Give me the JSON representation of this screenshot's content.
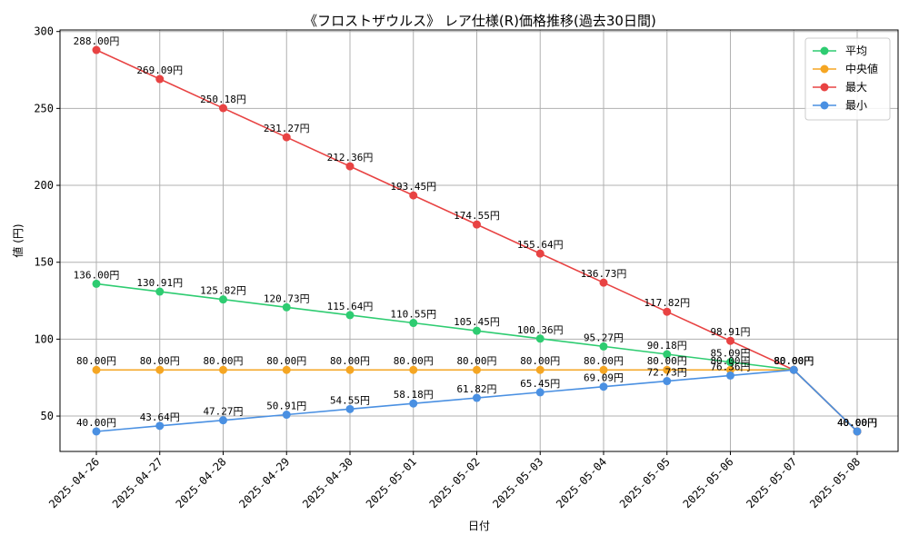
{
  "chart_data": {
    "type": "line",
    "title": "《フロストザウルス》 レア仕様(R)価格推移(過去30日間)",
    "xlabel": "日付",
    "ylabel": "値 (円)",
    "ylim": [
      27,
      301
    ],
    "yticks": [
      50,
      100,
      150,
      200,
      250,
      300
    ],
    "grid": true,
    "legend_position": "top-right",
    "categories": [
      "2025-04-26",
      "2025-04-27",
      "2025-04-28",
      "2025-04-29",
      "2025-04-30",
      "2025-05-01",
      "2025-05-02",
      "2025-05-03",
      "2025-05-04",
      "2025-05-05",
      "2025-05-06",
      "2025-05-07",
      "2025-05-08"
    ],
    "series": [
      {
        "name": "平均",
        "color": "#2ecc71",
        "values": [
          136.0,
          130.91,
          125.82,
          120.73,
          115.64,
          110.55,
          105.45,
          100.36,
          95.27,
          90.18,
          85.09,
          80.0,
          40.0
        ],
        "labels": [
          "136.00円",
          "130.91円",
          "125.82円",
          "120.73円",
          "115.64円",
          "110.55円",
          "105.45円",
          "100.36円",
          "95.27円",
          "90.18円",
          "85.09円",
          "80.00円",
          "40.00円"
        ]
      },
      {
        "name": "中央値",
        "color": "#f5a623",
        "values": [
          80.0,
          80.0,
          80.0,
          80.0,
          80.0,
          80.0,
          80.0,
          80.0,
          80.0,
          80.0,
          80.0,
          80.0,
          40.0
        ],
        "labels": [
          "80.00円",
          "80.00円",
          "80.00円",
          "80.00円",
          "80.00円",
          "80.00円",
          "80.00円",
          "80.00円",
          "80.00円",
          "80.00円",
          "80.00円",
          "80.00円",
          "40.00円"
        ]
      },
      {
        "name": "最大",
        "color": "#e84343",
        "values": [
          288.0,
          269.09,
          250.18,
          231.27,
          212.36,
          193.45,
          174.55,
          155.64,
          136.73,
          117.82,
          98.91,
          80.0,
          40.0
        ],
        "labels": [
          "288.00円",
          "269.09円",
          "250.18円",
          "231.27円",
          "212.36円",
          "193.45円",
          "174.55円",
          "155.64円",
          "136.73円",
          "117.82円",
          "98.91円",
          "80.00円",
          "40.00円"
        ]
      },
      {
        "name": "最小",
        "color": "#4a90e2",
        "values": [
          40.0,
          43.64,
          47.27,
          50.91,
          54.55,
          58.18,
          61.82,
          65.45,
          69.09,
          72.73,
          76.36,
          80.0,
          40.0
        ],
        "labels": [
          "40.00円",
          "43.64円",
          "47.27円",
          "50.91円",
          "54.55円",
          "58.18円",
          "61.82円",
          "65.45円",
          "69.09円",
          "72.73円",
          "76.36円",
          "80.00円",
          "40.00円"
        ]
      }
    ]
  }
}
